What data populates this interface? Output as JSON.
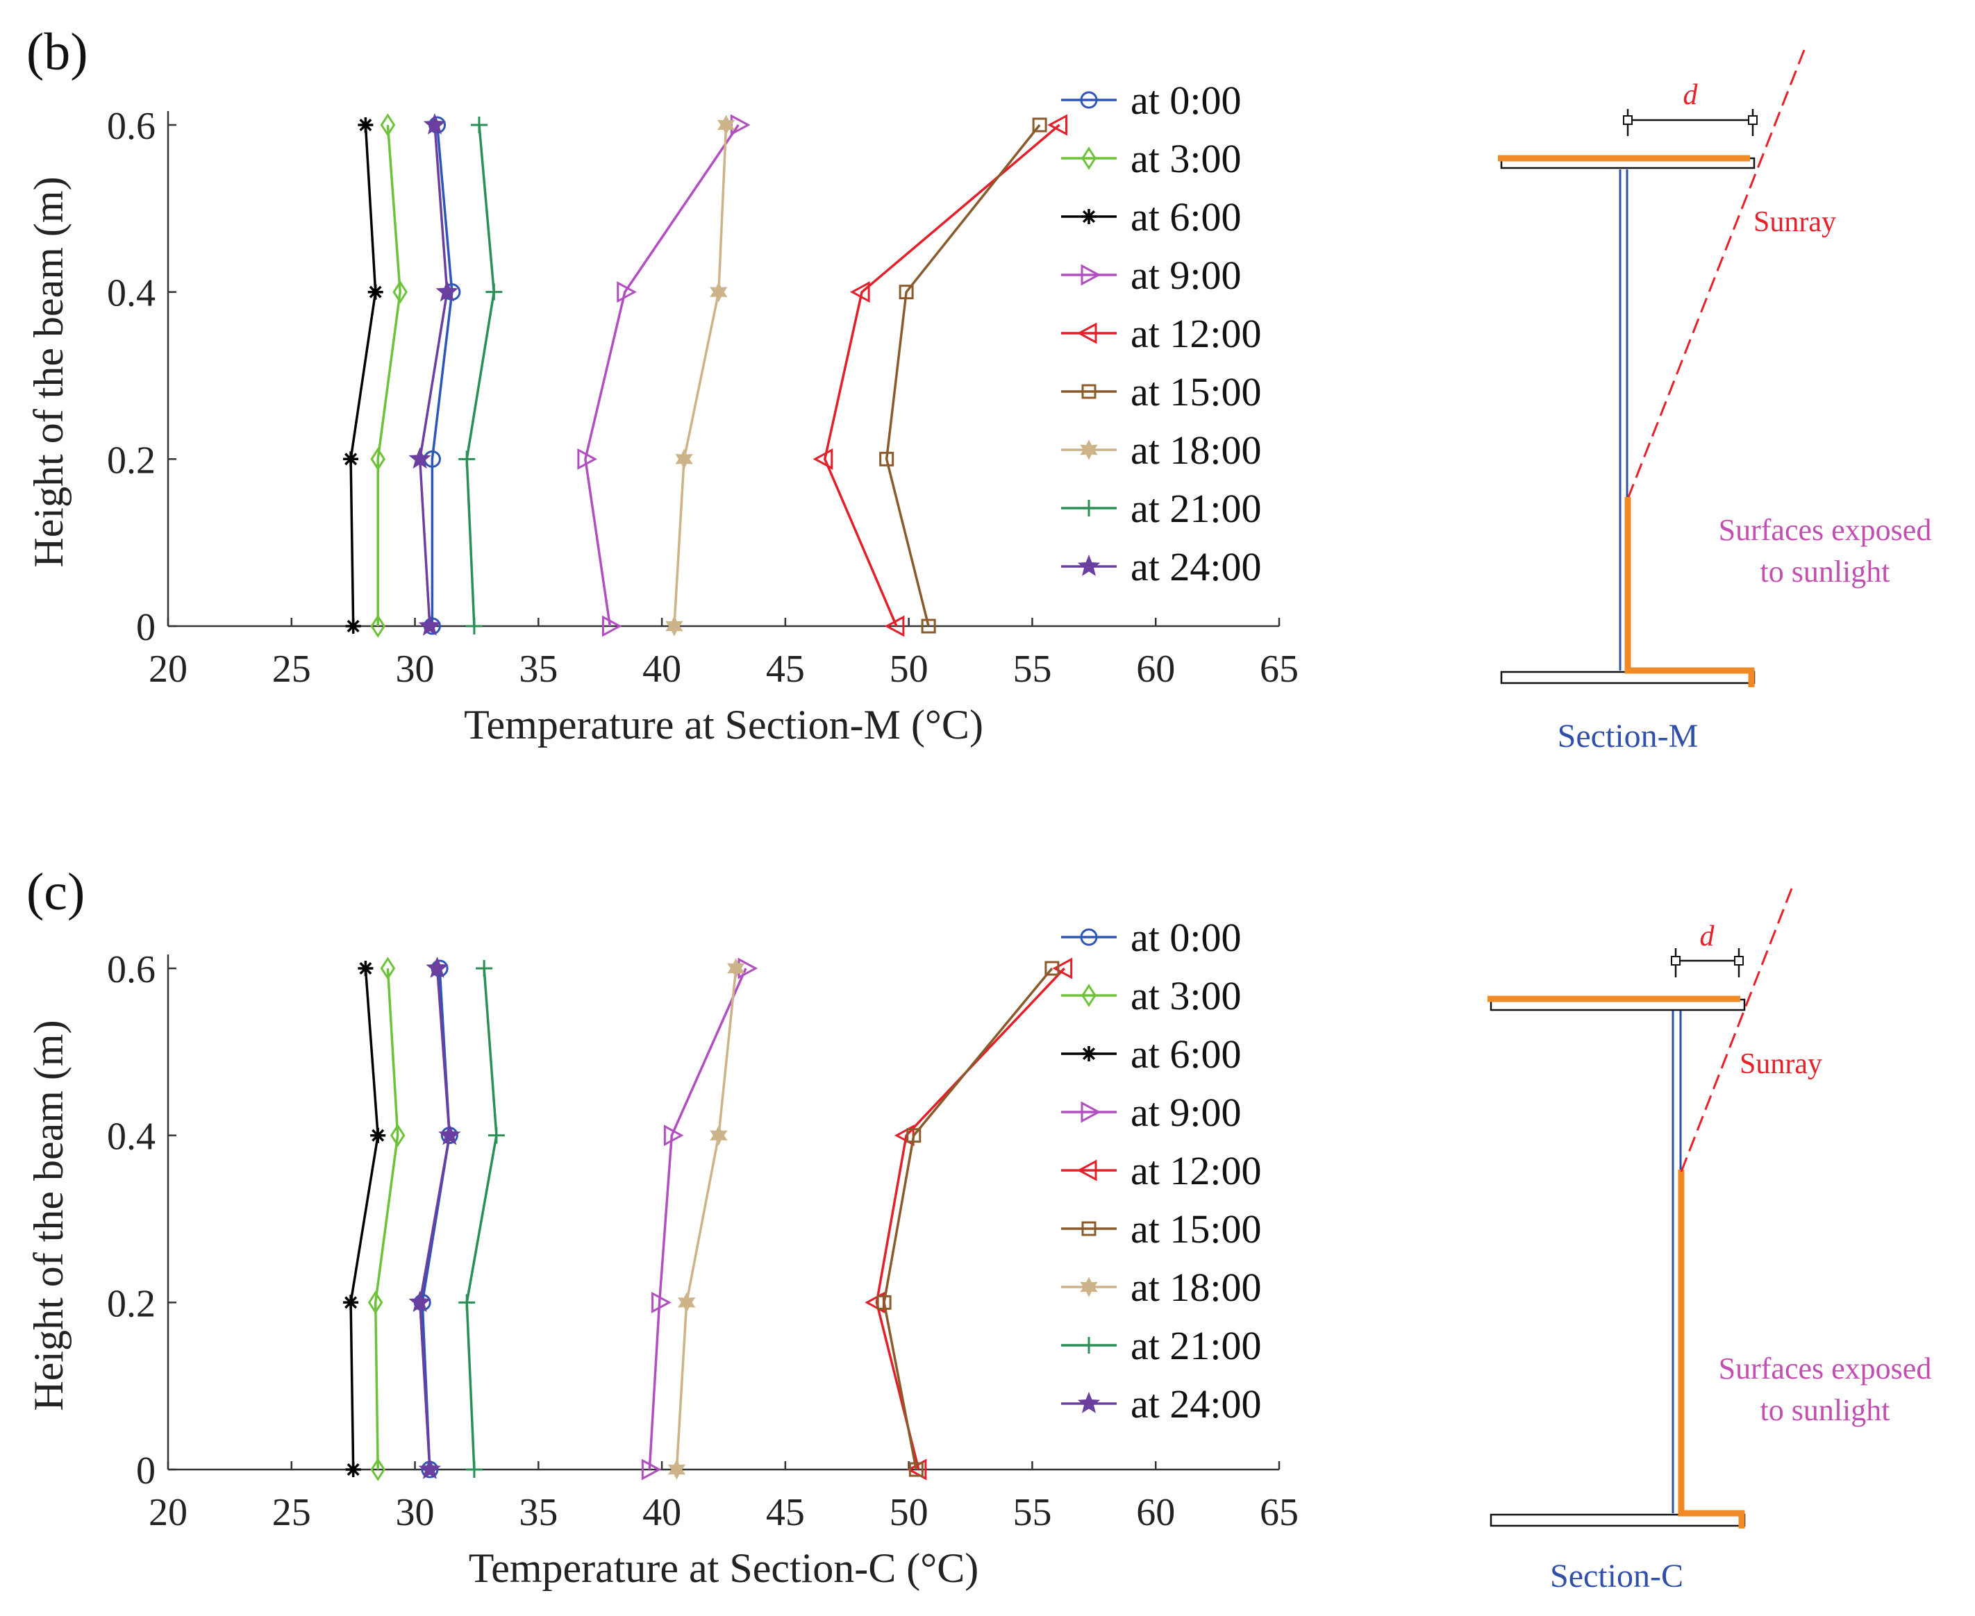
{
  "panel_b": {
    "label": "(b)",
    "diagram": {
      "dimension_label": "d",
      "sunray_label": "Sunray",
      "exposed_label_line1": "Surfaces exposed",
      "exposed_label_line2": "to sunlight",
      "section_label": "Section-M"
    }
  },
  "panel_c": {
    "label": "(c)",
    "diagram": {
      "dimension_label": "d",
      "sunray_label": "Sunray",
      "exposed_label_line1": "Surfaces exposed",
      "exposed_label_line2": "to sunlight",
      "section_label": "Section-C"
    }
  },
  "colors": {
    "section_blue": "#2f4fa8",
    "sunray_red": "#e8202a",
    "exposed_orange": "#f08a24",
    "exposed_text": "#c24fb0"
  },
  "chart_data": [
    {
      "type": "line",
      "panel": "b",
      "xlabel": "Temperature at Section-M (°C)",
      "ylabel": "Height of the beam (m)",
      "xlim": [
        20,
        65
      ],
      "ylim": [
        0,
        0.6
      ],
      "xticks": [
        20,
        25,
        30,
        35,
        40,
        45,
        50,
        55,
        60,
        65
      ],
      "yticks": [
        0,
        0.2,
        0.4,
        0.6
      ],
      "ytick_labels": [
        "0",
        "0.2",
        "0.4",
        "0.6"
      ],
      "grid": false,
      "legend": "top-right",
      "y": [
        0,
        0.2,
        0.4,
        0.6
      ],
      "series": [
        {
          "name": "at 0:00",
          "color": "#2e55b8",
          "marker": "circle",
          "x": [
            30.7,
            30.7,
            31.5,
            30.9
          ]
        },
        {
          "name": "at 3:00",
          "color": "#6cc238",
          "marker": "diamond",
          "x": [
            28.5,
            28.5,
            29.4,
            28.9
          ]
        },
        {
          "name": "at 6:00",
          "color": "#000000",
          "marker": "asterisk",
          "x": [
            27.5,
            27.4,
            28.4,
            28.0
          ]
        },
        {
          "name": "at 9:00",
          "color": "#b14fc0",
          "marker": "triangle-right",
          "x": [
            37.9,
            36.9,
            38.5,
            43.1
          ]
        },
        {
          "name": "at 12:00",
          "color": "#e3202a",
          "marker": "triangle-left",
          "x": [
            49.5,
            46.6,
            48.1,
            56.1
          ]
        },
        {
          "name": "at 15:00",
          "color": "#8b5a2b",
          "marker": "square",
          "x": [
            50.8,
            49.1,
            49.9,
            55.3
          ]
        },
        {
          "name": "at 18:00",
          "color": "#cdb38a",
          "marker": "hexagram",
          "x": [
            40.5,
            40.9,
            42.3,
            42.6
          ]
        },
        {
          "name": "at 21:00",
          "color": "#2a8f55",
          "marker": "plus",
          "x": [
            32.4,
            32.1,
            33.2,
            32.6
          ]
        },
        {
          "name": "at 24:00",
          "color": "#6b3fa0",
          "marker": "pentagram",
          "x": [
            30.6,
            30.2,
            31.3,
            30.8
          ]
        }
      ]
    },
    {
      "type": "line",
      "panel": "c",
      "xlabel": "Temperature at Section-C (°C)",
      "ylabel": "Height of the beam (m)",
      "xlim": [
        20,
        65
      ],
      "ylim": [
        0,
        0.6
      ],
      "xticks": [
        20,
        25,
        30,
        35,
        40,
        45,
        50,
        55,
        60,
        65
      ],
      "yticks": [
        0,
        0.2,
        0.4,
        0.6
      ],
      "ytick_labels": [
        "0",
        "0.2",
        "0.4",
        "0.6"
      ],
      "grid": false,
      "legend": "top-right",
      "y": [
        0,
        0.2,
        0.4,
        0.6
      ],
      "series": [
        {
          "name": "at 0:00",
          "color": "#2e55b8",
          "marker": "circle",
          "x": [
            30.6,
            30.3,
            31.4,
            31.0
          ]
        },
        {
          "name": "at 3:00",
          "color": "#6cc238",
          "marker": "diamond",
          "x": [
            28.5,
            28.4,
            29.3,
            28.9
          ]
        },
        {
          "name": "at 6:00",
          "color": "#000000",
          "marker": "asterisk",
          "x": [
            27.5,
            27.4,
            28.5,
            28.0
          ]
        },
        {
          "name": "at 9:00",
          "color": "#b14fc0",
          "marker": "triangle-right",
          "x": [
            39.5,
            39.9,
            40.4,
            43.4
          ]
        },
        {
          "name": "at 12:00",
          "color": "#e3202a",
          "marker": "triangle-left",
          "x": [
            50.4,
            48.7,
            49.9,
            56.3
          ]
        },
        {
          "name": "at 15:00",
          "color": "#8b5a2b",
          "marker": "square",
          "x": [
            50.3,
            49.0,
            50.2,
            55.8
          ]
        },
        {
          "name": "at 18:00",
          "color": "#cdb38a",
          "marker": "hexagram",
          "x": [
            40.6,
            41.0,
            42.3,
            43.0
          ]
        },
        {
          "name": "at 21:00",
          "color": "#2a8f55",
          "marker": "plus",
          "x": [
            32.4,
            32.1,
            33.3,
            32.8
          ]
        },
        {
          "name": "at 24:00",
          "color": "#6b3fa0",
          "marker": "pentagram",
          "x": [
            30.6,
            30.2,
            31.4,
            30.9
          ]
        }
      ]
    }
  ]
}
